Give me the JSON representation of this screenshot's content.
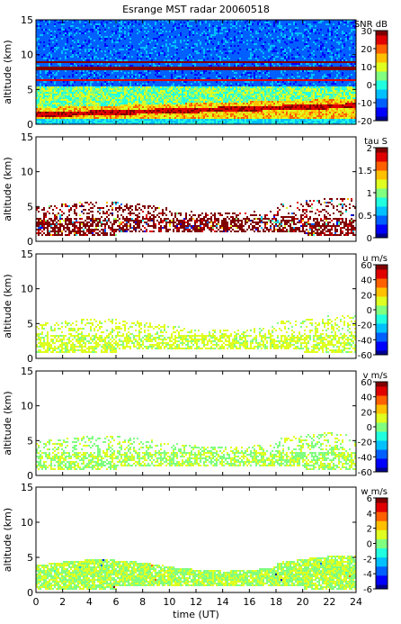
{
  "figure": {
    "title": "Esrange MST radar 20060518",
    "xlabel": "time (UT)"
  },
  "colormap": [
    "#00008f",
    "#0000ff",
    "#0060ff",
    "#00c0ff",
    "#20ffdf",
    "#80ff80",
    "#dfff20",
    "#ffc000",
    "#ff6000",
    "#e00000",
    "#800000"
  ],
  "chart_data": [
    {
      "type": "heatmap",
      "name": "snr",
      "title": "Esrange MST radar 20060518",
      "xlabel": "",
      "ylabel": "altitude (km)",
      "xlim": [
        0,
        24
      ],
      "ylim": [
        0,
        15
      ],
      "yticks": [
        0,
        5,
        10,
        15
      ],
      "xticks": [
        0,
        2,
        4,
        6,
        8,
        10,
        12,
        14,
        16,
        18,
        20,
        22,
        24
      ],
      "colorbar": {
        "label": "SNR dB",
        "min": -20,
        "max": 30,
        "ticks": [
          -20,
          -10,
          0,
          10,
          20,
          30
        ]
      },
      "description_values": {
        "background_level": -12,
        "inversion_layer_km": [
          1.5,
          2.8
        ],
        "peak_level": 25
      }
    },
    {
      "type": "heatmap",
      "name": "tau",
      "ylabel": "altitude (km)",
      "xlim": [
        0,
        24
      ],
      "ylim": [
        0,
        15
      ],
      "yticks": [
        0,
        5,
        10,
        15
      ],
      "colorbar": {
        "label": "tau S",
        "min": 0,
        "max": 2,
        "ticks": [
          0,
          0.5,
          1,
          1.5,
          2
        ]
      },
      "description_values": {
        "valid_altitude_range_km": [
          1,
          6
        ],
        "typical_value": 2
      }
    },
    {
      "type": "heatmap",
      "name": "u",
      "ylabel": "altitude (km)",
      "xlim": [
        0,
        24
      ],
      "ylim": [
        0,
        15
      ],
      "yticks": [
        0,
        5,
        10,
        15
      ],
      "colorbar": {
        "label": "u m/s",
        "min": -60,
        "max": 60,
        "ticks": [
          -60,
          -40,
          -20,
          0,
          20,
          40,
          60
        ]
      },
      "description_values": {
        "valid_altitude_range_km": [
          1,
          6
        ],
        "typical_value": 10
      }
    },
    {
      "type": "heatmap",
      "name": "v",
      "ylabel": "altitude (km)",
      "xlim": [
        0,
        24
      ],
      "ylim": [
        0,
        15
      ],
      "yticks": [
        0,
        5,
        10,
        15
      ],
      "colorbar": {
        "label": "v m/s",
        "min": -60,
        "max": 60,
        "ticks": [
          -60,
          -40,
          -20,
          0,
          20,
          40,
          60
        ]
      },
      "description_values": {
        "valid_altitude_range_km": [
          1,
          6
        ],
        "typical_value": 5
      }
    },
    {
      "type": "heatmap",
      "name": "w",
      "ylabel": "altitude (km)",
      "xlabel": "time (UT)",
      "xlim": [
        0,
        24
      ],
      "ylim": [
        0,
        15
      ],
      "yticks": [
        0,
        5,
        10,
        15
      ],
      "xticks": [
        0,
        2,
        4,
        6,
        8,
        10,
        12,
        14,
        16,
        18,
        20,
        22,
        24
      ],
      "colorbar": {
        "label": "w m/s",
        "min": -6,
        "max": 6,
        "ticks": [
          -6,
          -4,
          -2,
          0,
          2,
          4,
          6
        ]
      },
      "description_values": {
        "valid_altitude_range_km": [
          0.5,
          5
        ],
        "typical_value": 0.5
      }
    }
  ]
}
